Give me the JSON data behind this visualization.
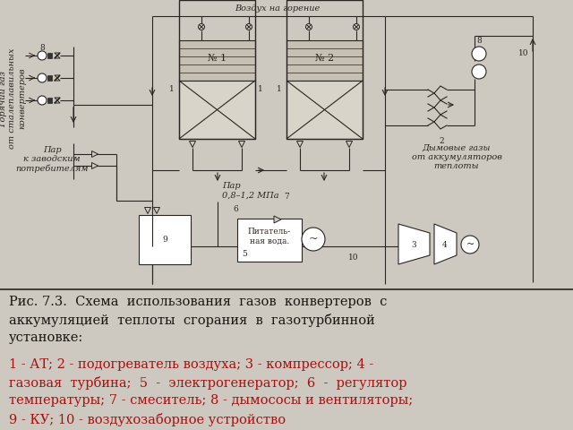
{
  "bg_color": "#cdc9c0",
  "line_color": "#2a2520",
  "caption_color": "#1a1510",
  "red_color": "#aa1010",
  "label_vozduh": "Воздух на горение",
  "label_dymovye": "Дымовые газы\nот аккумуляторов\nтеплоты",
  "label_par1": "Пар\n0,8–1,2 МПа",
  "label_par2": "Пар\nк заводским\nпотребителям",
  "label_goryachiy": "Горячий газ\nот сталеплавильных\nконвертеров",
  "label_pitatelnaya": "Питатель-\nная вода.",
  "label_N1": "№ 1",
  "label_N2": "№ 2",
  "caption_black": "Рис. 7.3.  Схема  использования  газов  конвертеров  с\nаккумуляцией  теплоты  сгорания  в  газотурбинной\nустановке:",
  "caption_red": "1 - АТ; 2 - подогреватель воздуха; 3 - компрессор; 4 -\nгазовая  турбина;  5  -  электрогенератор;  6  -  регулятор\nтемпературы; 7 - смеситель; 8 - дымососы и вентиляторы;\n9 - КУ; 10 - воздухозаборное устройство",
  "fontsize_small": 6.5,
  "fontsize_label": 7.0,
  "fontsize_caption": 10.5
}
